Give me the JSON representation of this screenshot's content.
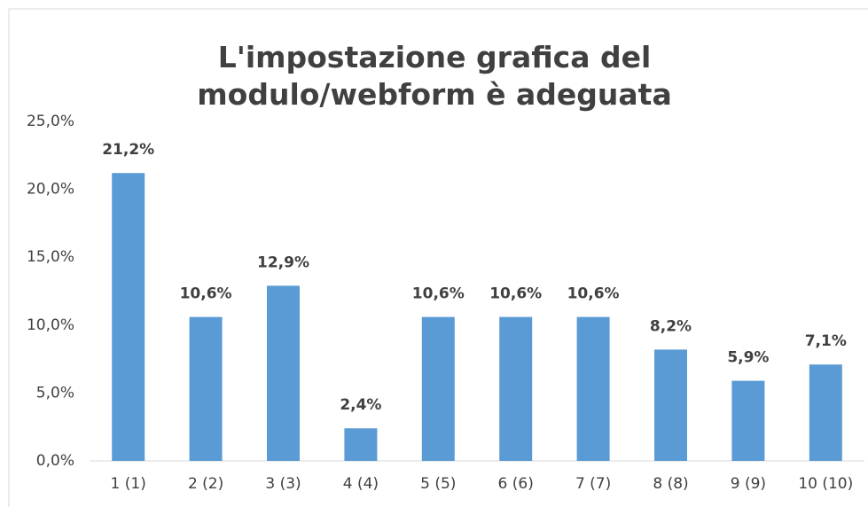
{
  "chart_data": {
    "type": "bar",
    "title": "L'impostazione grafica del modulo/webform è adeguata",
    "categories": [
      "1 (1)",
      "2 (2)",
      "3 (3)",
      "4 (4)",
      "5 (5)",
      "6 (6)",
      "7 (7)",
      "8 (8)",
      "9 (9)",
      "10 (10)"
    ],
    "values": [
      21.2,
      10.6,
      12.9,
      2.4,
      10.6,
      10.6,
      10.6,
      8.2,
      5.9,
      7.1
    ],
    "value_labels": [
      "21,2%",
      "10,6%",
      "12,9%",
      "2,4%",
      "10,6%",
      "10,6%",
      "10,6%",
      "8,2%",
      "5,9%",
      "7,1%"
    ],
    "color": "#5b9bd5",
    "ylim": [
      0,
      25
    ],
    "yticks": [
      {
        "value": 0,
        "label": "0,0%"
      },
      {
        "value": 5,
        "label": "5,0%"
      },
      {
        "value": 10,
        "label": "10,0%"
      },
      {
        "value": 15,
        "label": "15,0%"
      },
      {
        "value": 20,
        "label": "20,0%"
      },
      {
        "value": 25,
        "label": "25,0%"
      }
    ],
    "grid": false
  }
}
